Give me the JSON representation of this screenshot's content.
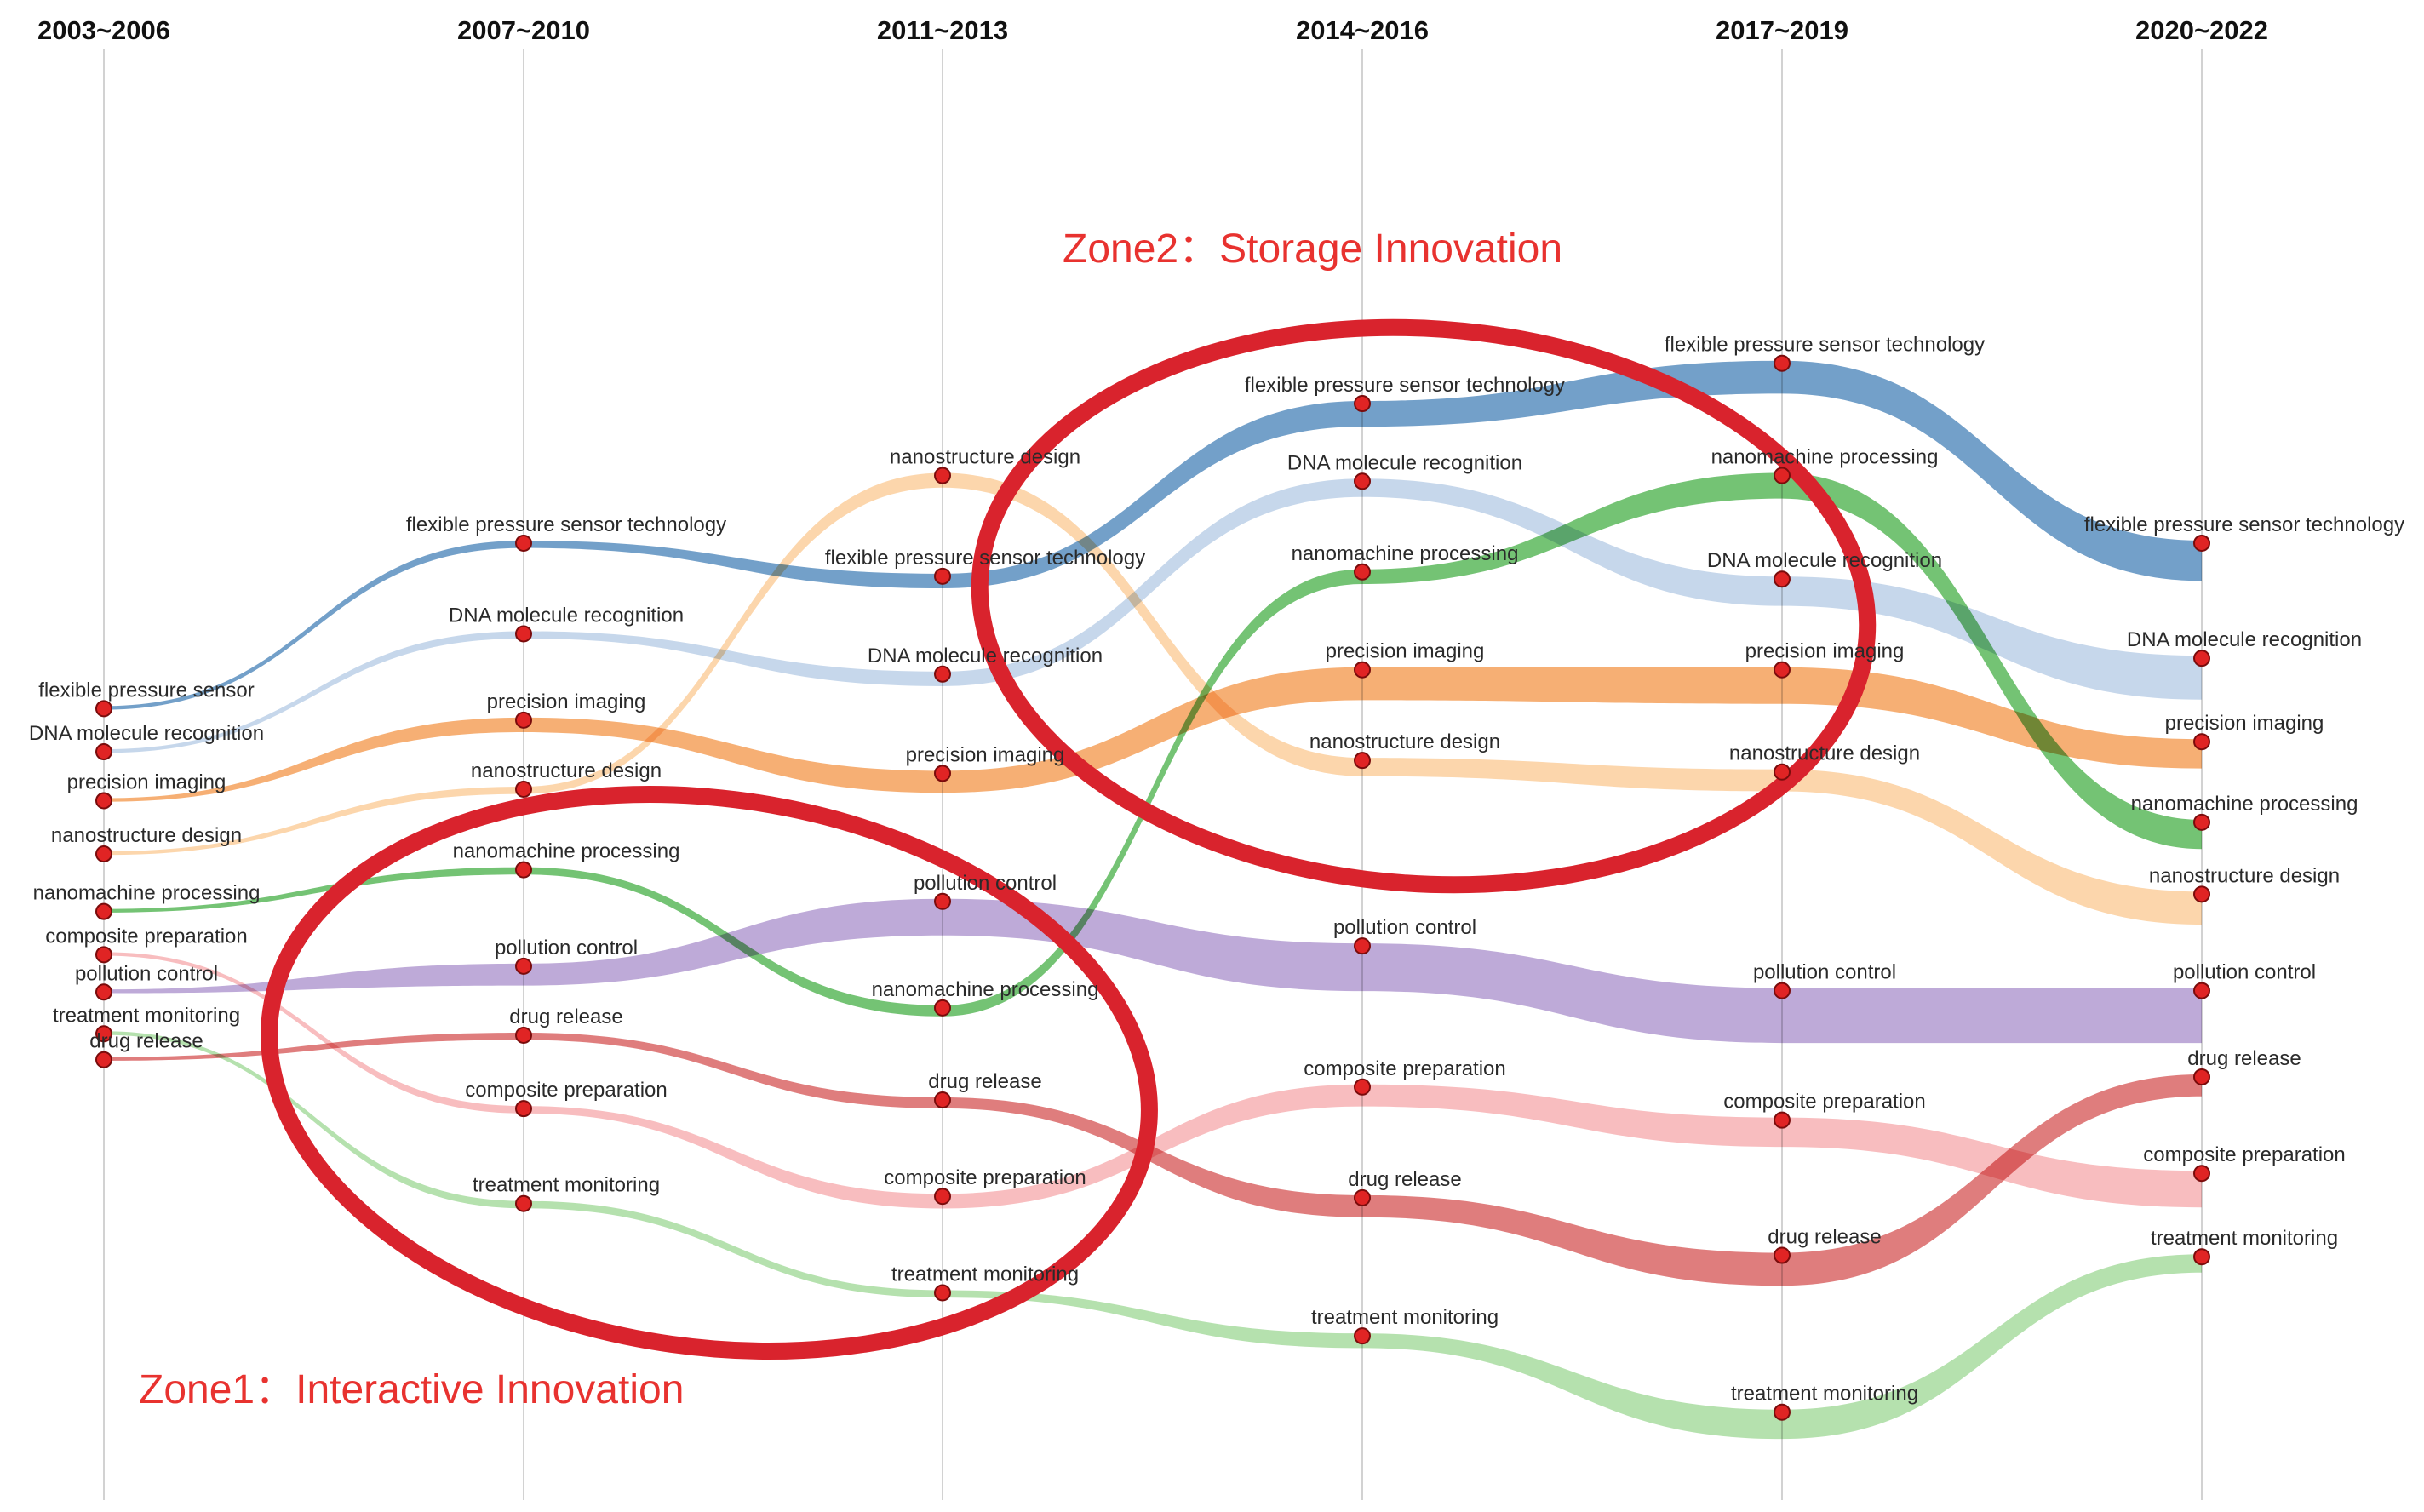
{
  "chart_data": {
    "type": "sankey",
    "title": "",
    "periods": [
      "2003~2006",
      "2007~2010",
      "2011~2013",
      "2014~2016",
      "2017~2019",
      "2020~2022"
    ],
    "y_scale": "relative rank (0 = top, 1 = bottom)",
    "series": [
      {
        "name": "flexible pressure sensor technology",
        "color": "#5b8fbf",
        "labels": [
          "flexible pressure sensor",
          "flexible pressure sensor technology",
          "flexible pressure sensor technology",
          "flexible pressure sensor technology",
          "flexible pressure sensor technology",
          "flexible pressure sensor technology"
        ],
        "pos": [
          0.457,
          0.342,
          0.365,
          0.245,
          0.217,
          0.342
        ],
        "weight": [
          1,
          2,
          4,
          7,
          9,
          11
        ]
      },
      {
        "name": "DNA molecule recognition",
        "color": "#bcd0e8",
        "labels": [
          "DNA molecule recognition",
          "DNA molecule recognition",
          "DNA molecule recognition",
          "DNA molecule recognition",
          "DNA molecule recognition",
          "DNA molecule recognition"
        ],
        "pos": [
          0.487,
          0.405,
          0.433,
          0.299,
          0.367,
          0.422
        ],
        "weight": [
          1,
          2,
          4,
          5,
          8,
          12
        ]
      },
      {
        "name": "precision imaging",
        "color": "#f5a15c",
        "labels": [
          "precision imaging",
          "precision imaging",
          "precision imaging",
          "precision imaging",
          "precision imaging",
          "precision imaging"
        ],
        "pos": [
          0.521,
          0.465,
          0.502,
          0.43,
          0.43,
          0.48
        ],
        "weight": [
          1,
          4,
          6,
          9,
          10,
          8
        ]
      },
      {
        "name": "nanostructure design",
        "color": "#fbcf9e",
        "labels": [
          "nanostructure design",
          "nanostructure design",
          "nanostructure design",
          "nanostructure design",
          "nanostructure design",
          "nanostructure design"
        ],
        "pos": [
          0.558,
          0.513,
          0.295,
          0.493,
          0.501,
          0.586
        ],
        "weight": [
          1,
          2,
          4,
          5,
          6,
          9
        ]
      },
      {
        "name": "nanomachine processing",
        "color": "#5cb85c",
        "labels": [
          "nanomachine processing",
          "nanomachine processing",
          "nanomachine processing",
          "nanomachine processing",
          "nanomachine processing",
          "nanomachine processing"
        ],
        "pos": [
          0.598,
          0.569,
          0.665,
          0.362,
          0.295,
          0.536
        ],
        "weight": [
          1,
          2,
          3,
          4,
          7,
          8
        ]
      },
      {
        "name": "composite preparation",
        "color": "#f7b2b4",
        "labels": [
          "composite preparation",
          "composite preparation",
          "composite preparation",
          "composite preparation",
          "composite preparation",
          "composite preparation"
        ],
        "pos": [
          0.628,
          0.735,
          0.796,
          0.72,
          0.743,
          0.78
        ],
        "weight": [
          1,
          2,
          4,
          6,
          8,
          10
        ]
      },
      {
        "name": "pollution control",
        "color": "#b39bd1",
        "labels": [
          "pollution control",
          "pollution control",
          "pollution control",
          "pollution control",
          "pollution control",
          "pollution control"
        ],
        "pos": [
          0.654,
          0.636,
          0.591,
          0.622,
          0.653,
          0.653
        ],
        "weight": [
          1,
          6,
          10,
          13,
          15,
          15
        ]
      },
      {
        "name": "treatment monitoring",
        "color": "#a8dca0",
        "labels": [
          "treatment monitoring",
          "treatment monitoring",
          "treatment monitoring",
          "treatment monitoring",
          "treatment monitoring",
          "treatment monitoring"
        ],
        "pos": [
          0.683,
          0.801,
          0.863,
          0.893,
          0.946,
          0.838
        ],
        "weight": [
          1,
          2,
          2,
          4,
          8,
          5
        ]
      },
      {
        "name": "drug release",
        "color": "#d96666",
        "labels": [
          "drug release",
          "drug release",
          "drug release",
          "drug release",
          "drug release",
          "drug release"
        ],
        "pos": [
          0.701,
          0.684,
          0.729,
          0.797,
          0.837,
          0.713
        ],
        "weight": [
          1,
          2,
          3,
          6,
          9,
          6
        ]
      }
    ],
    "annotations": [
      {
        "text": "Zone1：Interactive Innovation",
        "color": "#e8322f"
      },
      {
        "text": "Zone2：Storage Innovation",
        "color": "#e8322f"
      }
    ],
    "node_color": "#e02424",
    "axis_color": "#d2d2d2",
    "zone_color": "#d9232d"
  }
}
